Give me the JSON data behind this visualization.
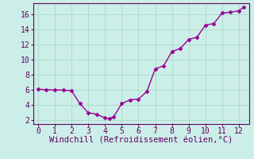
{
  "x": [
    0,
    0.5,
    1,
    1.5,
    2,
    2.5,
    3,
    3.5,
    4,
    4.25,
    4.5,
    5,
    5.5,
    6,
    6.5,
    7,
    7.5,
    8,
    8.5,
    9,
    9.5,
    10,
    10.5,
    11,
    11.5,
    12,
    12.3
  ],
  "y": [
    6.1,
    6.05,
    6.0,
    6.0,
    5.9,
    4.2,
    3.0,
    2.8,
    2.3,
    2.2,
    2.4,
    4.2,
    4.7,
    4.8,
    5.8,
    8.8,
    9.2,
    11.1,
    11.5,
    12.7,
    13.0,
    14.6,
    14.8,
    16.2,
    16.3,
    16.5,
    17.0
  ],
  "line_color": "#990099",
  "marker": "D",
  "marker_size": 2.5,
  "bg_color": "#cceee8",
  "grid_color": "#aaddcc",
  "axis_color": "#660066",
  "tick_color": "#660066",
  "xlabel": "Windchill (Refroidissement éolien,°C)",
  "xlabel_color": "#660066",
  "xlim": [
    -0.3,
    12.6
  ],
  "ylim": [
    1.5,
    17.5
  ],
  "xticks": [
    0,
    1,
    2,
    3,
    4,
    5,
    6,
    7,
    8,
    9,
    10,
    11,
    12
  ],
  "yticks": [
    2,
    4,
    6,
    8,
    10,
    12,
    14,
    16
  ],
  "font_name": "monospace",
  "tick_fontsize": 7,
  "xlabel_fontsize": 7.5
}
